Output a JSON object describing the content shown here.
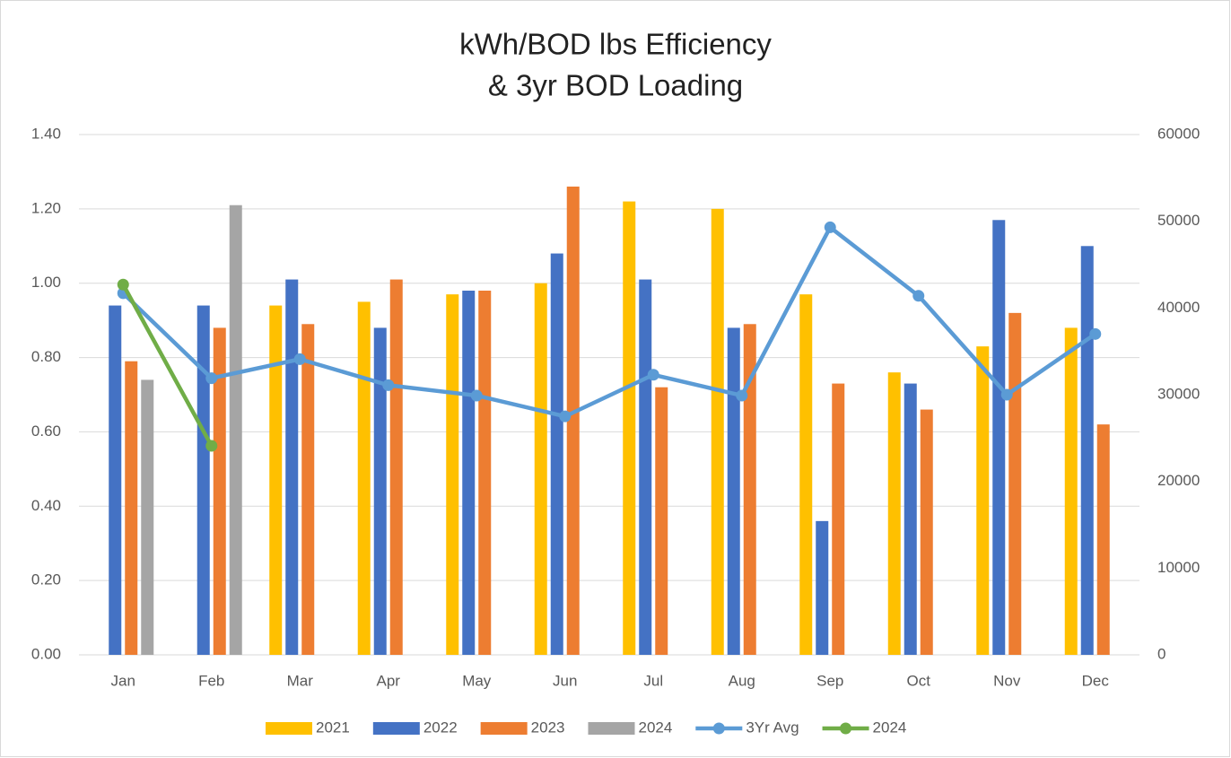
{
  "chart_data": {
    "type": "bar_line",
    "title": [
      "kWh/BOD lbs Efficiency",
      "& 3yr BOD Loading"
    ],
    "categories": [
      "Jan",
      "Feb",
      "Mar",
      "Apr",
      "May",
      "Jun",
      "Jul",
      "Aug",
      "Sep",
      "Oct",
      "Nov",
      "Dec"
    ],
    "ylim": [
      0,
      1.4
    ],
    "yticks": [
      {
        "value": 0,
        "label": "0.00"
      },
      {
        "value": 0.2,
        "label": "0.20"
      },
      {
        "value": 0.4,
        "label": "0.40"
      },
      {
        "value": 0.6,
        "label": "0.60"
      },
      {
        "value": 0.8,
        "label": "0.80"
      },
      {
        "value": 1.0,
        "label": "1.00"
      },
      {
        "value": 1.2,
        "label": "1.20"
      },
      {
        "value": 1.4,
        "label": "1.40"
      }
    ],
    "y2lim": [
      0,
      60000
    ],
    "y2ticks": [
      0,
      10000,
      20000,
      30000,
      40000,
      50000,
      60000
    ],
    "grid": true,
    "legend": "bottom",
    "series": [
      {
        "name": "2021",
        "kind": "bar",
        "color": "#ffc000",
        "values": [
          null,
          null,
          0.94,
          0.95,
          0.97,
          1.0,
          1.22,
          1.2,
          0.97,
          0.76,
          0.83,
          0.88
        ]
      },
      {
        "name": "2022",
        "kind": "bar",
        "color": "#4472c4",
        "values": [
          0.94,
          0.94,
          1.01,
          0.88,
          0.98,
          1.08,
          1.01,
          0.88,
          0.36,
          0.73,
          1.17,
          1.1
        ]
      },
      {
        "name": "2023",
        "kind": "bar",
        "color": "#ed7d31",
        "values": [
          0.79,
          0.88,
          0.89,
          1.01,
          0.98,
          1.26,
          0.72,
          0.89,
          0.73,
          0.66,
          0.92,
          0.62
        ]
      },
      {
        "name": "2024",
        "kind": "bar",
        "color": "#a5a5a5",
        "values": [
          0.74,
          1.21,
          null,
          null,
          null,
          null,
          null,
          null,
          null,
          null,
          null,
          null
        ]
      },
      {
        "name": "3Yr Avg",
        "kind": "line",
        "axis": "y2",
        "color": "#5b9bd5",
        "values": [
          41700,
          31900,
          34100,
          31100,
          29900,
          27500,
          32300,
          29900,
          49300,
          41400,
          30000,
          37000
        ]
      },
      {
        "name": "2024",
        "kind": "line",
        "axis": "y2",
        "color": "#70ad47",
        "values": [
          42700,
          24100,
          null,
          null,
          null,
          null,
          null,
          null,
          null,
          null,
          null,
          null
        ]
      }
    ]
  }
}
